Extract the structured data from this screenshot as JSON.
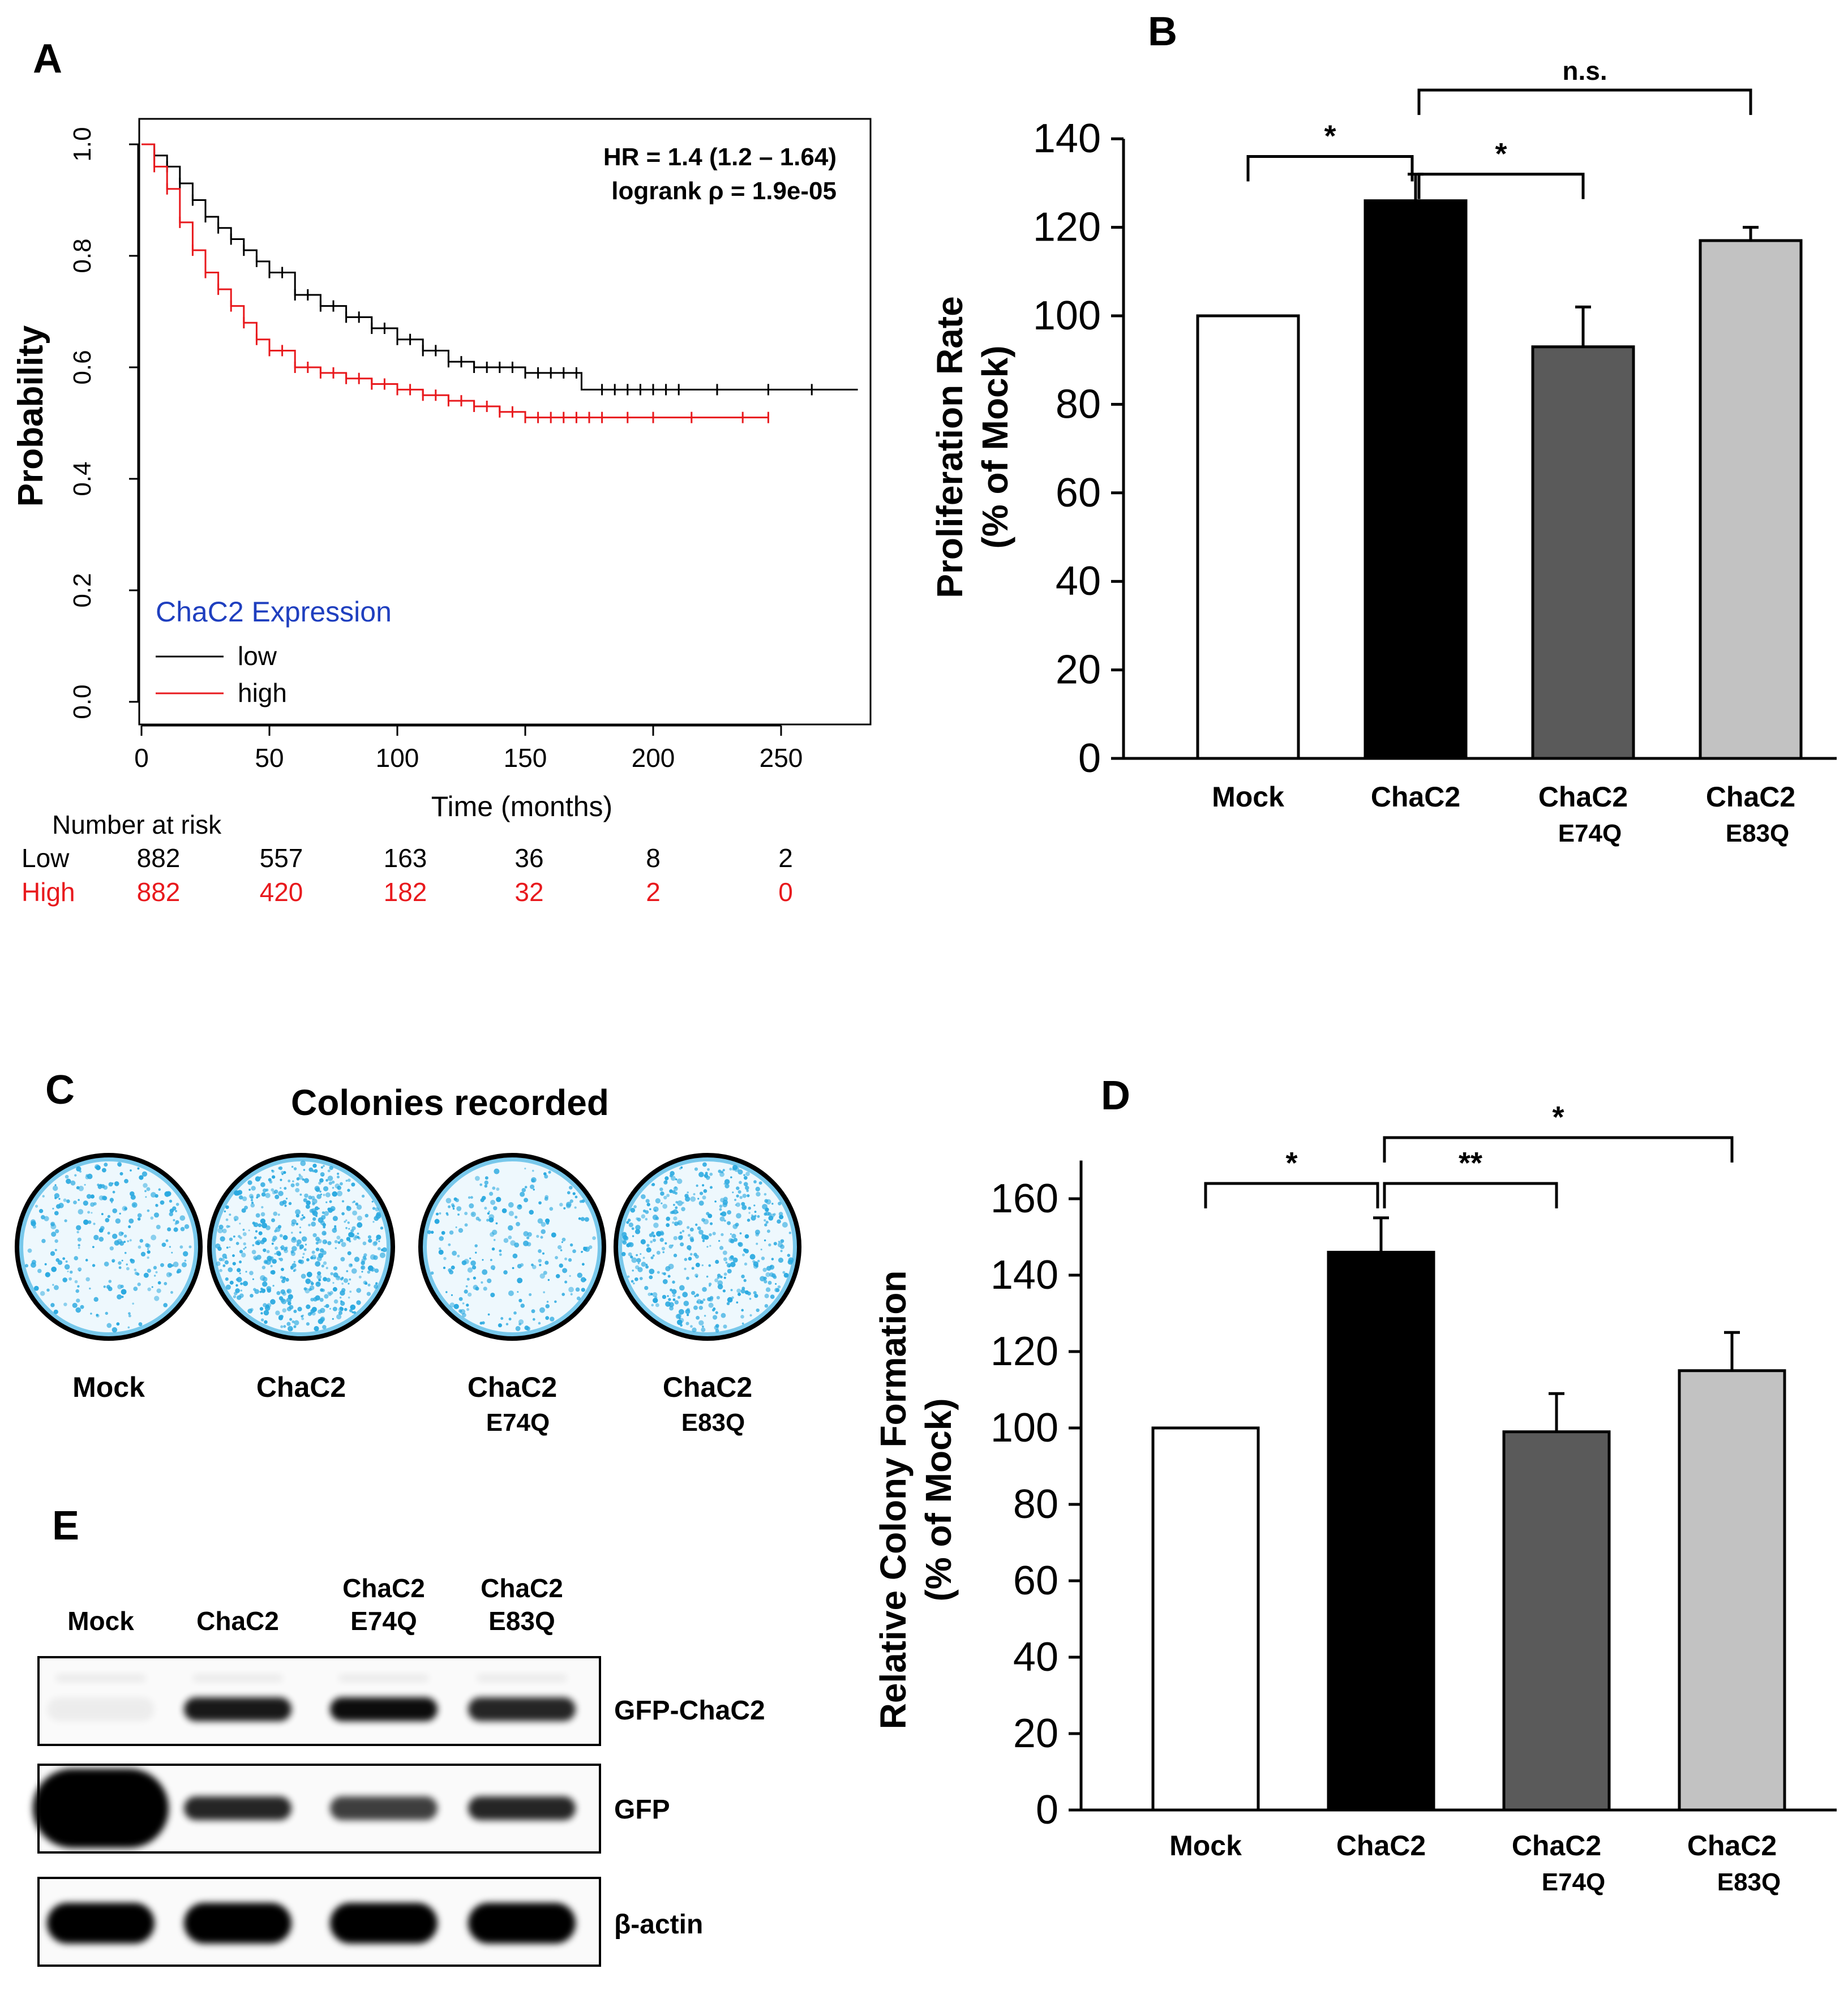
{
  "panels": {
    "A": "A",
    "B": "B",
    "C": "C",
    "D": "D",
    "E": "E"
  },
  "colors": {
    "low": "#000000",
    "high": "#e8191d",
    "legend_title": "#1f3fbf",
    "mock": "#ffffff",
    "chac2": "#000000",
    "e74q": "#5a5a5a",
    "e83q": "#c2c2c2",
    "stain": "#2aa9e0"
  },
  "chart_data": [
    {
      "panel": "A",
      "type": "line",
      "title": "",
      "xlabel": "Time (months)",
      "ylabel": "Probability",
      "xlim": [
        0,
        280
      ],
      "ylim": [
        0,
        1.0
      ],
      "xticks": [
        0,
        50,
        100,
        150,
        200,
        250
      ],
      "xtick_labels": [
        "0",
        "50",
        "100",
        "150",
        "200",
        "250"
      ],
      "yticks": [
        0.0,
        0.2,
        0.4,
        0.6,
        0.8,
        1.0
      ],
      "ytick_labels": [
        "0.0",
        "0.2",
        "0.4",
        "0.6",
        "0.8",
        "1.0"
      ],
      "annotations": [
        "HR = 1.4 (1.2 – 1.64)",
        "logrank ρ = 1.9e-05"
      ],
      "legend_title": "ChaC2 Expression",
      "series": [
        {
          "name": "low",
          "color": "#000000",
          "x": [
            0,
            5,
            10,
            15,
            20,
            25,
            30,
            35,
            40,
            45,
            50,
            60,
            70,
            80,
            90,
            100,
            110,
            120,
            130,
            140,
            150,
            160,
            170,
            172,
            200,
            240,
            280
          ],
          "y": [
            1.0,
            0.98,
            0.96,
            0.93,
            0.9,
            0.87,
            0.85,
            0.83,
            0.81,
            0.79,
            0.77,
            0.73,
            0.71,
            0.69,
            0.67,
            0.65,
            0.63,
            0.61,
            0.6,
            0.6,
            0.59,
            0.59,
            0.59,
            0.56,
            0.56,
            0.56,
            0.56
          ],
          "censor_x": [
            5,
            10,
            15,
            20,
            25,
            30,
            35,
            40,
            45,
            50,
            55,
            60,
            65,
            70,
            75,
            80,
            85,
            90,
            95,
            100,
            105,
            110,
            115,
            120,
            125,
            130,
            135,
            140,
            145,
            150,
            155,
            160,
            165,
            170,
            180,
            185,
            190,
            195,
            200,
            205,
            210,
            225,
            245,
            262
          ]
        },
        {
          "name": "high",
          "color": "#e8191d",
          "x": [
            0,
            5,
            10,
            15,
            20,
            25,
            30,
            35,
            40,
            45,
            50,
            60,
            70,
            80,
            90,
            100,
            110,
            120,
            130,
            140,
            150,
            180,
            245
          ],
          "y": [
            1.0,
            0.96,
            0.92,
            0.86,
            0.81,
            0.77,
            0.74,
            0.71,
            0.68,
            0.65,
            0.63,
            0.6,
            0.59,
            0.58,
            0.57,
            0.56,
            0.55,
            0.54,
            0.53,
            0.52,
            0.51,
            0.51,
            0.51
          ],
          "censor_x": [
            5,
            10,
            15,
            20,
            25,
            30,
            35,
            40,
            45,
            50,
            55,
            60,
            65,
            70,
            75,
            80,
            85,
            90,
            95,
            100,
            105,
            110,
            115,
            120,
            125,
            130,
            135,
            140,
            145,
            150,
            155,
            160,
            165,
            170,
            175,
            180,
            190,
            200,
            215,
            235,
            245
          ]
        }
      ],
      "risk_table": {
        "title": "Number at risk",
        "rows": [
          {
            "label": "Low",
            "color": "#000000",
            "values": [
              "882",
              "557",
              "163",
              "36",
              "8",
              "2"
            ]
          },
          {
            "label": "High",
            "color": "#e8191d",
            "values": [
              "882",
              "420",
              "182",
              "32",
              "2",
              "0"
            ]
          }
        ]
      }
    },
    {
      "panel": "B",
      "type": "bar",
      "title": "",
      "xlabel": "",
      "ylabel": [
        "Proliferation Rate",
        "(% of Mock)"
      ],
      "ylim": [
        0,
        140
      ],
      "yticks": [
        "0",
        "20",
        "40",
        "60",
        "80",
        "100",
        "120",
        "140"
      ],
      "categories": [
        [
          "Mock",
          ""
        ],
        [
          "ChaC2",
          ""
        ],
        [
          "ChaC2",
          "E74Q"
        ],
        [
          "ChaC2",
          "E83Q"
        ]
      ],
      "values": [
        100,
        126,
        93,
        117
      ],
      "errors": [
        0,
        6,
        9,
        3
      ],
      "significance": [
        {
          "from": 0,
          "to": 1,
          "label": "*",
          "level": 136
        },
        {
          "from": 1,
          "to": 2,
          "label": "*",
          "level": 132
        },
        {
          "from": 1,
          "to": 3,
          "label": "n.s.",
          "level": 151
        }
      ]
    },
    {
      "panel": "D",
      "type": "bar",
      "title": "",
      "xlabel": "",
      "ylabel": [
        "Relative Colony Formation",
        "(% of Mock)"
      ],
      "ylim": [
        0,
        170
      ],
      "yticks": [
        "0",
        "20",
        "40",
        "60",
        "80",
        "100",
        "120",
        "140",
        "160"
      ],
      "categories": [
        [
          "Mock",
          ""
        ],
        [
          "ChaC2",
          ""
        ],
        [
          "ChaC2",
          "E74Q"
        ],
        [
          "ChaC2",
          "E83Q"
        ]
      ],
      "values": [
        100,
        146,
        99,
        115
      ],
      "errors": [
        0,
        9,
        10,
        10
      ],
      "significance": [
        {
          "from": 0,
          "to": 1,
          "label": "*",
          "level": 164
        },
        {
          "from": 1,
          "to": 2,
          "label": "**",
          "level": 164
        },
        {
          "from": 1,
          "to": 3,
          "label": "*",
          "level": 176
        }
      ]
    }
  ],
  "panel_c": {
    "title": "Colonies recorded",
    "plates": [
      {
        "label": "Mock",
        "sub": "",
        "density": 0.45
      },
      {
        "label": "ChaC2",
        "sub": "",
        "density": 0.9
      },
      {
        "label": "ChaC2",
        "sub": "E74Q",
        "density": 0.4
      },
      {
        "label": "ChaC2",
        "sub": "E83Q",
        "density": 0.75
      }
    ]
  },
  "panel_e": {
    "lanes": [
      {
        "label": "Mock",
        "sub": ""
      },
      {
        "label": "ChaC2",
        "sub": ""
      },
      {
        "label": "ChaC2",
        "sub": "E74Q"
      },
      {
        "label": "ChaC2",
        "sub": "E83Q"
      }
    ],
    "blots": [
      {
        "label": "GFP-ChaC2",
        "intensity": [
          0.05,
          0.9,
          0.95,
          0.85
        ]
      },
      {
        "label": "GFP",
        "intensity": [
          1.0,
          0.85,
          0.75,
          0.85
        ]
      },
      {
        "label": "β-actin",
        "intensity": [
          1.0,
          1.0,
          1.0,
          1.0
        ]
      }
    ]
  }
}
